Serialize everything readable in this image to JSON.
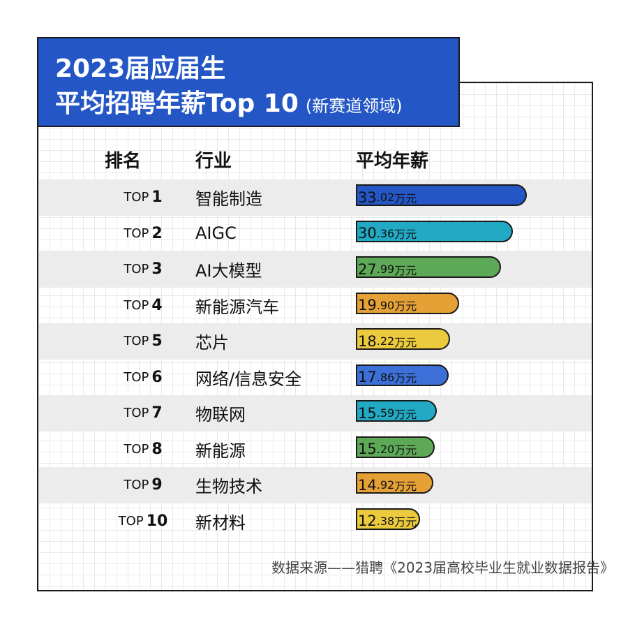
{
  "title": {
    "line1": "2023届应届生",
    "line2": "平均招聘年薪Top 10",
    "subtitle": "(新赛道领域)"
  },
  "headers": {
    "rank": "排名",
    "industry": "行业",
    "salary": "平均年薪"
  },
  "source": "数据来源——猎聘《2023届高校毕业生就业数据报告》",
  "chart_data": {
    "type": "bar",
    "orientation": "horizontal",
    "title": "2023届应届生 平均招聘年薪Top 10 (新赛道领域)",
    "unit": "万元",
    "value_label": "平均年薪",
    "rank_prefix": "TOP",
    "rows": [
      {
        "rank": "1",
        "industry": "智能制造",
        "value": 33.02,
        "int": "33",
        "dec": ".02",
        "unit": "万元",
        "color": "#2457c5"
      },
      {
        "rank": "2",
        "industry": "AIGC",
        "value": 30.36,
        "int": "30",
        "dec": ".36",
        "unit": "万元",
        "color": "#22a9c4"
      },
      {
        "rank": "3",
        "industry": "AI大模型",
        "value": 27.99,
        "int": "27",
        "dec": ".99",
        "unit": "万元",
        "color": "#5ea957"
      },
      {
        "rank": "4",
        "industry": "新能源汽车",
        "value": 19.9,
        "int": "19",
        "dec": ".90",
        "unit": "万元",
        "color": "#e6a136"
      },
      {
        "rank": "5",
        "industry": "芯片",
        "value": 18.22,
        "int": "18",
        "dec": ".22",
        "unit": "万元",
        "color": "#ebca3d"
      },
      {
        "rank": "6",
        "industry": "网络/信息安全",
        "value": 17.86,
        "int": "17",
        "dec": ".86",
        "unit": "万元",
        "color": "#3c70d8"
      },
      {
        "rank": "7",
        "industry": "物联网",
        "value": 15.59,
        "int": "15",
        "dec": ".59",
        "unit": "万元",
        "color": "#22a9c4"
      },
      {
        "rank": "8",
        "industry": "新能源",
        "value": 15.2,
        "int": "15",
        "dec": ".20",
        "unit": "万元",
        "color": "#5ea957"
      },
      {
        "rank": "9",
        "industry": "生物技术",
        "value": 14.92,
        "int": "14",
        "dec": ".92",
        "unit": "万元",
        "color": "#e6a136"
      },
      {
        "rank": "10",
        "industry": "新材料",
        "value": 12.38,
        "int": "12",
        "dec": ".38",
        "unit": "万元",
        "color": "#ebca3d"
      }
    ]
  }
}
